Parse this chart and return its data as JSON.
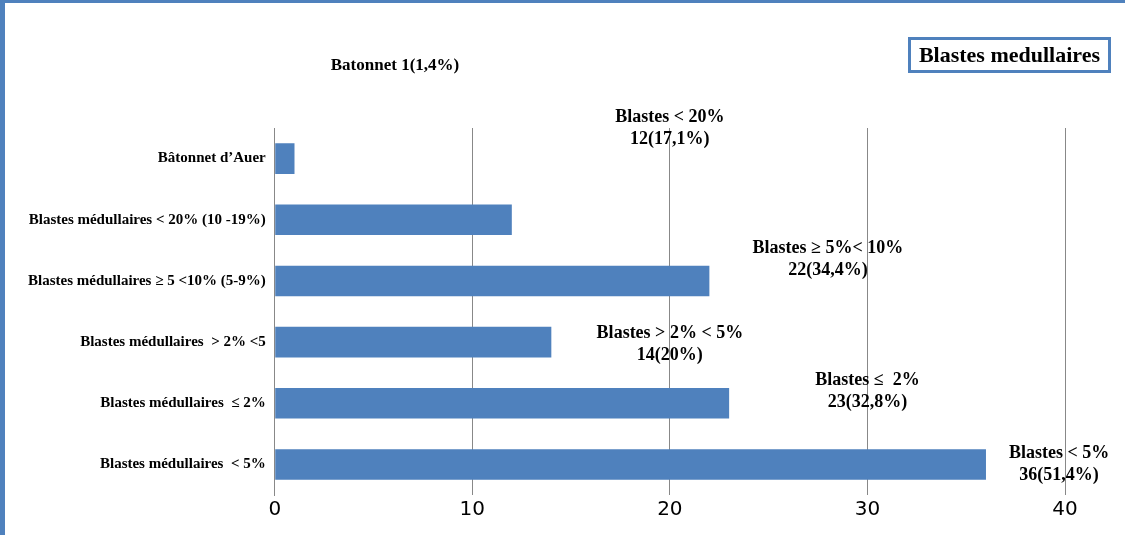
{
  "chart_data": {
    "type": "bar",
    "orientation": "horizontal",
    "title": "Blastes medullaires",
    "categories": [
      "Bâtonnet d’Auer",
      "Blastes médullaires < 20% (10 -19%)",
      "Blastes médullaires ≥ 5 <10% (5-9%)",
      "Blastes médullaires  > 2% <5",
      "Blastes médullaires  ≤ 2%",
      "Blastes médullaires  < 5%"
    ],
    "values": [
      1,
      12,
      22,
      14,
      23,
      36
    ],
    "color": "#4f81bd",
    "xlim": [
      0,
      40
    ],
    "xticks": [
      0,
      10,
      20,
      30,
      40
    ],
    "grid": "x",
    "legend": false,
    "annotations": [
      "Batonnet  1(1,4%)",
      "Blastes < 20%\n12(17,1%)",
      "Blastes ≥ 5%< 10%\n22(34,4%)",
      "Blastes > 2% < 5%\n14(20%)",
      "Blastes ≤  2%\n23(32,8%)",
      "Blastes < 5%\n36(51,4%)"
    ]
  }
}
